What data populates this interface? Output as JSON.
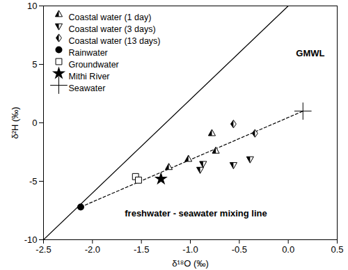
{
  "chart_data": {
    "type": "scatter",
    "x_label": "δ¹⁸O (‰)",
    "y_label": "δ²H (‰)",
    "xlim": [
      -2.5,
      0.5
    ],
    "xticks": [
      -2.5,
      {
        "value": -2,
        "label": "-2.0"
      },
      -1.5,
      {
        "value": -1,
        "label": "-1.0"
      },
      -0.5,
      {
        "value": 0,
        "label": "0.0"
      },
      0.5
    ],
    "ylim": [
      -10,
      10
    ],
    "yticks": [
      -10,
      -5,
      0,
      5,
      10
    ],
    "legend": "top-left",
    "grid": false,
    "series": [
      {
        "name": "Coastal water (1 day)",
        "marker": "half-triangle-up",
        "color": "#000000",
        "x": [
          -1.22,
          -1.02,
          -0.78,
          -0.74
        ],
        "values": [
          -3.8,
          -3.1,
          -0.9,
          -2.4
        ]
      },
      {
        "name": "Coastal water (3 days)",
        "marker": "half-triangle-down",
        "color": "#000000",
        "x": [
          -0.9,
          -0.87,
          -0.56,
          -0.39
        ],
        "values": [
          -4.0,
          -3.5,
          -3.6,
          -3.1
        ]
      },
      {
        "name": "Coastal water (13 days)",
        "marker": "half-diamond",
        "color": "#000000",
        "x": [
          -0.56,
          -0.34
        ],
        "values": [
          -0.1,
          -0.9
        ]
      },
      {
        "name": "Rainwater",
        "marker": "circle",
        "color": "#000000",
        "x": [
          -2.12
        ],
        "values": [
          -7.2
        ]
      },
      {
        "name": "Groundwater",
        "marker": "open-square",
        "color": "#000000",
        "x": [
          -1.56,
          -1.53
        ],
        "values": [
          -4.6,
          -4.9
        ]
      },
      {
        "name": "Mithi River",
        "marker": "star",
        "color": "#000000",
        "x": [
          -1.3
        ],
        "values": [
          -4.8
        ]
      },
      {
        "name": "Seawater",
        "marker": "cross",
        "color": "#000000",
        "x": [
          0.15
        ],
        "values": [
          1.0
        ]
      },
      {
        "name": "GMWL",
        "type": "line",
        "line_style": "solid",
        "color": "#000000",
        "x": [
          -2.5,
          0
        ],
        "values": [
          -10,
          10
        ]
      },
      {
        "name": "freshwater - seawater mixing line",
        "type": "line",
        "line_style": "dashed",
        "color": "#000000",
        "x": [
          -2.12,
          0.15
        ],
        "values": [
          -7.2,
          1.0
        ]
      }
    ]
  }
}
